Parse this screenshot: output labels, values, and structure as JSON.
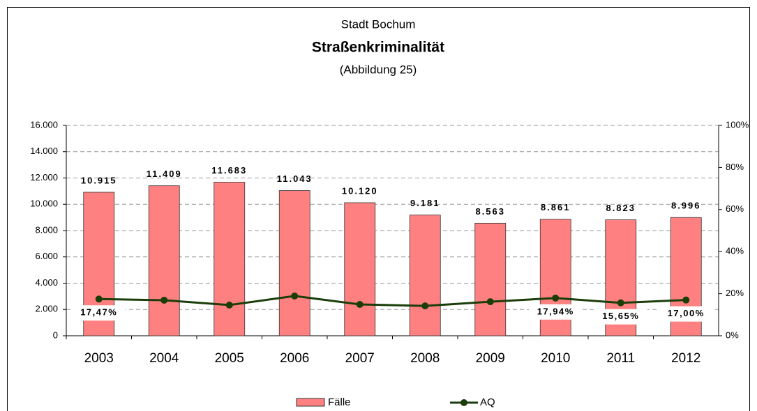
{
  "chart_data": {
    "type": "bar_line",
    "title": "Stadt Bochum",
    "subtitle": "Straßenkriminalität",
    "caption": "(Abbildung 25)",
    "categories": [
      "2003",
      "2004",
      "2005",
      "2006",
      "2007",
      "2008",
      "2009",
      "2010",
      "2011",
      "2012"
    ],
    "series": [
      {
        "name": "Fälle",
        "type": "bar",
        "color": "#ff8080",
        "values": [
          10915,
          11409,
          11683,
          11043,
          10120,
          9181,
          8563,
          8861,
          8823,
          8996
        ],
        "value_labels": [
          "10.915",
          "11.409",
          "11.683",
          "11.043",
          "10.120",
          "9.181",
          "8.563",
          "8.861",
          "8.823",
          "8.996"
        ]
      },
      {
        "name": "AQ",
        "type": "line",
        "axis": "y2",
        "color": "#1a3d0a",
        "values": [
          17.47,
          16.9,
          14.6,
          18.9,
          14.9,
          14.2,
          16.2,
          17.94,
          15.65,
          17.0
        ],
        "value_labels": [
          "17,47%",
          null,
          null,
          null,
          null,
          null,
          null,
          "17,94%",
          "15,65%",
          "17,00%"
        ]
      }
    ],
    "ylim": [
      0,
      16000
    ],
    "yticks": [
      0,
      {
        "value": 2000,
        "label": "2.000"
      },
      {
        "value": 4000,
        "label": "4.000"
      },
      {
        "value": 6000,
        "label": "6.000"
      },
      {
        "value": 8000,
        "label": "8.000"
      },
      {
        "value": 10000,
        "label": "10.000"
      },
      {
        "value": 12000,
        "label": "12.000"
      },
      {
        "value": 14000,
        "label": "14.000"
      },
      {
        "value": 16000,
        "label": "16.000"
      }
    ],
    "y2lim": [
      0,
      100
    ],
    "y2ticks": [
      {
        "value": 0,
        "label": "0%"
      },
      {
        "value": 20,
        "label": "20%"
      },
      {
        "value": 40,
        "label": "40%"
      },
      {
        "value": 60,
        "label": "60%"
      },
      {
        "value": 80,
        "label": "80%"
      },
      {
        "value": 100,
        "label": "100%"
      }
    ],
    "grid": true
  }
}
